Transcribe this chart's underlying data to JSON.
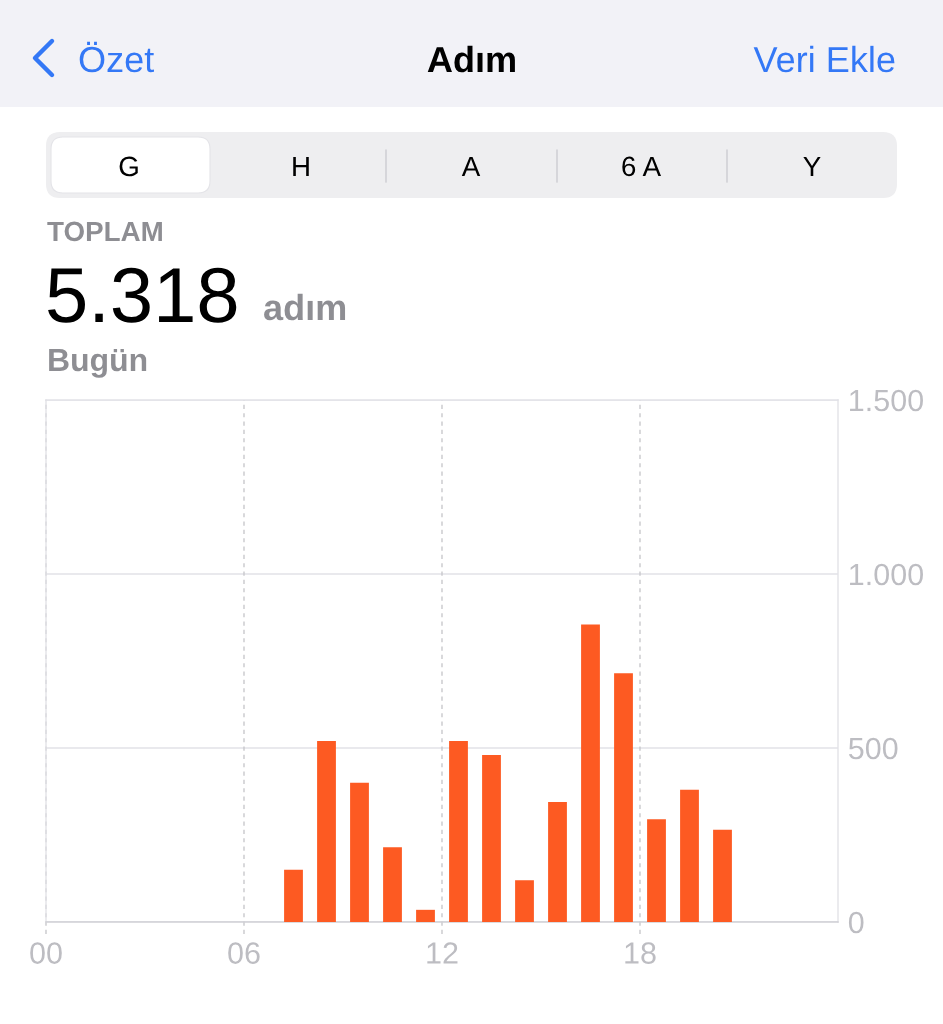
{
  "chart_data": {
    "type": "bar",
    "title": "Adım",
    "annotations": [
      "Özet",
      "Veri Ekle",
      "G",
      "H",
      "A",
      "6 A",
      "Y",
      "TOPLAM",
      "5.318",
      "adım",
      "Bugün"
    ],
    "x": [
      7.5,
      8.5,
      9.5,
      10.5,
      11.5,
      12.5,
      13.5,
      14.5,
      15.5,
      16.5,
      17.5,
      18.5,
      19.5,
      20.5
    ],
    "values": [
      150,
      520,
      400,
      215,
      35,
      520,
      480,
      120,
      345,
      855,
      715,
      295,
      380,
      265
    ],
    "color": "#fd5a22",
    "xlim": [
      0,
      24
    ],
    "xticks": [
      {
        "value": 0,
        "label": "00"
      },
      {
        "value": 6,
        "label": "06"
      },
      12,
      18
    ],
    "ylim": [
      0,
      1500
    ],
    "yticks": [
      0,
      500,
      {
        "value": 1000,
        "label": "1.000"
      },
      {
        "value": 1500,
        "label": "1.500"
      }
    ],
    "grid": true
  }
}
